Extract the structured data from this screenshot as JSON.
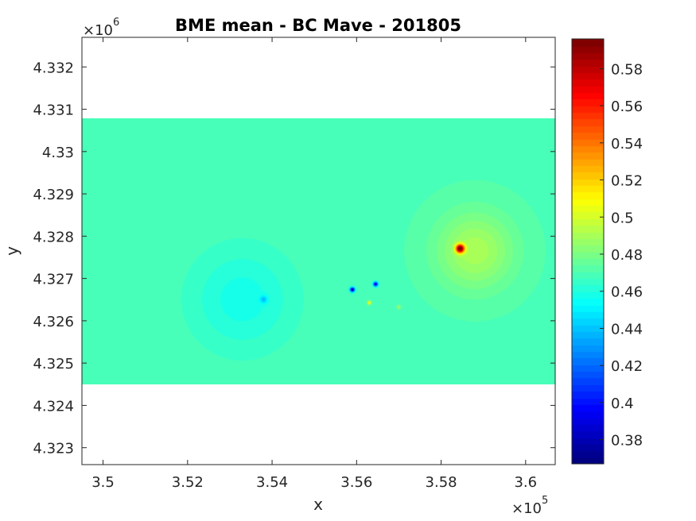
{
  "chart_data": {
    "type": "heatmap",
    "title": "BME mean - BC Mave - 201805",
    "xlabel": "x",
    "ylabel": "y",
    "x_multiplier": "×10",
    "x_multiplier_exp": "5",
    "y_multiplier": "×10",
    "y_multiplier_exp": "6",
    "xlim": [
      3.495,
      3.607
    ],
    "ylim": [
      4.3226,
      4.3327
    ],
    "x_ticks": [
      3.5,
      3.52,
      3.54,
      3.56,
      3.58,
      3.6
    ],
    "x_tick_labels": [
      "3.5",
      "3.52",
      "3.54",
      "3.56",
      "3.58",
      "3.6"
    ],
    "y_ticks": [
      4.323,
      4.324,
      4.325,
      4.326,
      4.327,
      4.328,
      4.329,
      4.33,
      4.331,
      4.332
    ],
    "y_tick_labels": [
      "4.323",
      "4.324",
      "4.325",
      "4.326",
      "4.327",
      "4.328",
      "4.329",
      "4.33",
      "4.331",
      "4.332"
    ],
    "data_extent": {
      "x": [
        3.495,
        3.607
      ],
      "y": [
        4.32449,
        4.33078
      ]
    },
    "background_value": 0.47,
    "hotspots": [
      {
        "x": 3.5845,
        "y": 4.3277,
        "value": 0.595,
        "spread": 0.0007
      },
      {
        "x": 3.588,
        "y": 4.32765,
        "value": 0.491,
        "spread": 0.0065
      },
      {
        "x": 3.538,
        "y": 4.3265,
        "value": 0.448,
        "spread": 0.0006
      },
      {
        "x": 3.533,
        "y": 4.3265,
        "value": 0.458,
        "spread": 0.0085
      },
      {
        "x": 3.559,
        "y": 4.32673,
        "value": 0.375,
        "spread": 0.0004
      },
      {
        "x": 3.5645,
        "y": 4.32686,
        "value": 0.385,
        "spread": 0.0004
      },
      {
        "x": 3.563,
        "y": 4.32642,
        "value": 0.515,
        "spread": 0.0003
      },
      {
        "x": 3.57,
        "y": 4.32632,
        "value": 0.49,
        "spread": 0.0003
      }
    ],
    "colorbar": {
      "colormap": "jet",
      "clim": [
        0.367,
        0.596
      ],
      "ticks": [
        0.38,
        0.4,
        0.42,
        0.44,
        0.46,
        0.48,
        0.5,
        0.52,
        0.54,
        0.56,
        0.58
      ],
      "tick_labels": [
        "0.38",
        "0.4",
        "0.42",
        "0.44",
        "0.46",
        "0.48",
        "0.5",
        "0.52",
        "0.54",
        "0.56",
        "0.58"
      ]
    },
    "grid": false
  }
}
